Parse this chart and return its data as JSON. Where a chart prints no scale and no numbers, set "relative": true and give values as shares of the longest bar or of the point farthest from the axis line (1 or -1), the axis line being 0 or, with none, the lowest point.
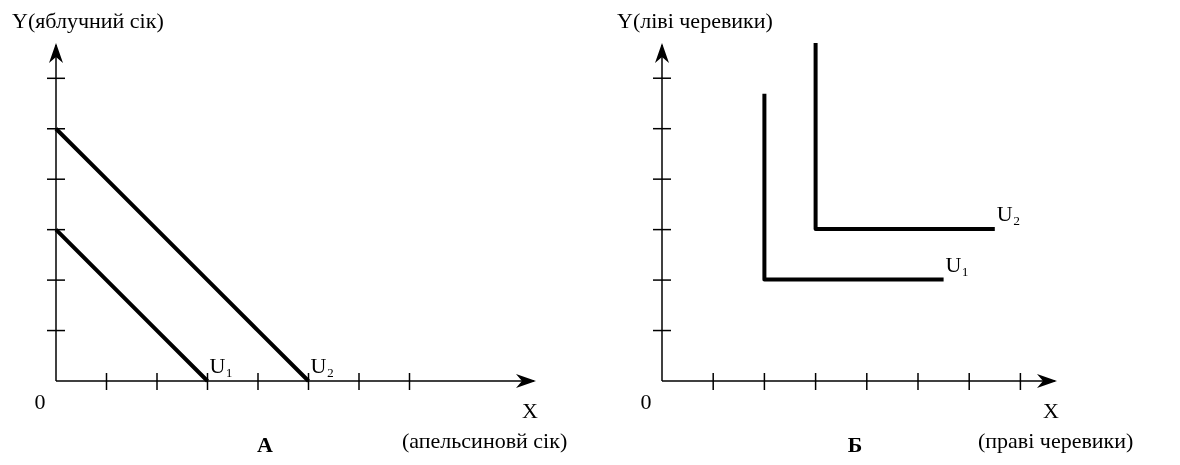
{
  "chart_data": [
    {
      "type": "line",
      "title": "А",
      "xlabel": "X",
      "ylabel": "Y(яблучний сік)",
      "annotations": [
        "0",
        "(апельсиновй сік)"
      ],
      "relative": true,
      "marker": "none",
      "line_style": "solid",
      "categories": [
        null,
        null,
        null,
        null,
        null,
        null,
        null,
        null
      ],
      "series": [
        {
          "name": "U₁",
          "color": "#000000",
          "values": [
            0.6,
            0.4,
            0.2,
            0,
            null,
            null,
            null,
            null
          ]
        },
        {
          "name": "U₂",
          "color": "#000000",
          "values": [
            1,
            0.8,
            0.6,
            0.4,
            0.2,
            0,
            null,
            null
          ]
        }
      ]
    },
    {
      "type": "step",
      "title": "Б",
      "xlabel": "X",
      "ylabel": "Y(ліві черевики)",
      "annotations": [
        "0",
        "(праві черевики)"
      ],
      "relative": true,
      "marker": "none",
      "line_style": "solid",
      "categories": [
        null,
        null,
        null,
        null,
        null,
        null,
        null,
        null,
        null,
        null,
        null,
        null,
        null,
        null,
        null
      ],
      "series": [
        {
          "name": "U₁",
          "color": "#000000",
          "values": [
            null,
            null,
            null,
            null,
            0.85,
            0.3,
            0.3,
            0.3,
            0.3,
            0.3,
            0.3,
            0.3,
            null,
            null,
            null
          ]
        },
        {
          "name": "U₂",
          "color": "#000000",
          "values": [
            null,
            null,
            null,
            null,
            null,
            null,
            1,
            0.45,
            0.45,
            0.45,
            0.45,
            0.45,
            0.45,
            0.45,
            null
          ]
        }
      ]
    }
  ]
}
